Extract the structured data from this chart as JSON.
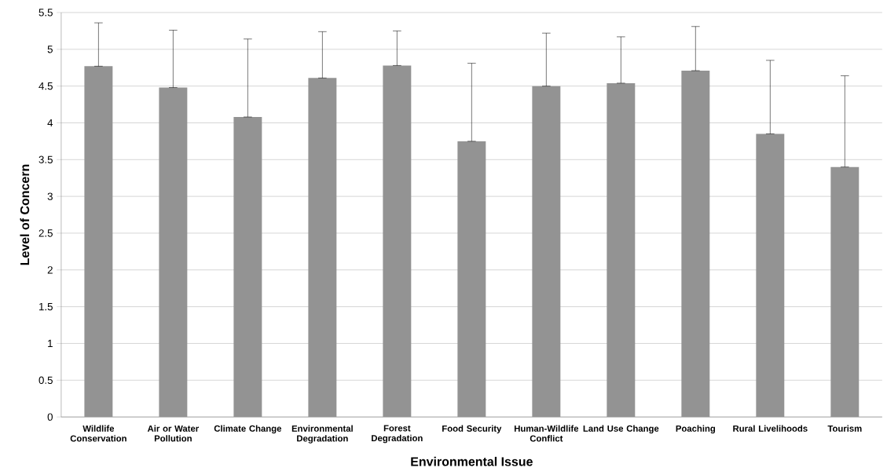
{
  "chart_data": {
    "type": "bar",
    "xlabel": "Environmental Issue",
    "ylabel": "Level of Concern",
    "categories": [
      "Wildlife Conservation",
      "Air or Water Pollution",
      "Climate Change",
      "Environmental Degradation",
      "Forest Degradation",
      "Food Security",
      "Human-Wildlife Conflict",
      "Land Use Change",
      "Poaching",
      "Rural Livelihoods",
      "Tourism"
    ],
    "values": [
      4.77,
      4.48,
      4.08,
      4.61,
      4.78,
      3.75,
      4.5,
      4.54,
      4.71,
      3.85,
      3.4
    ],
    "errors": [
      [
        4.77,
        5.36
      ],
      [
        4.48,
        5.26
      ],
      [
        4.08,
        5.14
      ],
      [
        4.61,
        5.24
      ],
      [
        4.78,
        5.25
      ],
      [
        3.75,
        4.81
      ],
      [
        4.5,
        5.22
      ],
      [
        4.54,
        5.17
      ],
      [
        4.71,
        5.31
      ],
      [
        3.85,
        4.85
      ],
      [
        3.4,
        4.64
      ]
    ],
    "color": "#939393",
    "ylim": [
      0,
      5.5
    ],
    "yticks": [
      0,
      {
        "value": 0.5,
        "label": "0.5"
      },
      1,
      {
        "value": 1.5,
        "label": "1.5"
      },
      2,
      {
        "value": 2.5,
        "label": "2.5"
      },
      3,
      {
        "value": 3.5,
        "label": "3.5"
      },
      4,
      {
        "value": 4.5,
        "label": "4.5"
      },
      5,
      {
        "value": 5.5,
        "label": "5.5"
      }
    ],
    "grid": "y"
  }
}
